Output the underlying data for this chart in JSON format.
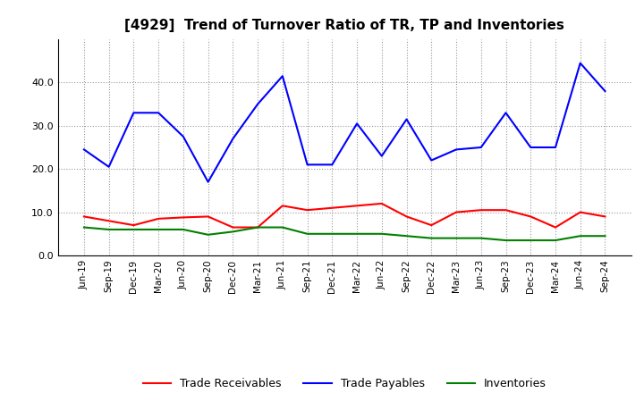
{
  "title": "[4929]  Trend of Turnover Ratio of TR, TP and Inventories",
  "x_labels": [
    "Jun-19",
    "Sep-19",
    "Dec-19",
    "Mar-20",
    "Jun-20",
    "Sep-20",
    "Dec-20",
    "Mar-21",
    "Jun-21",
    "Sep-21",
    "Dec-21",
    "Mar-22",
    "Jun-22",
    "Sep-22",
    "Dec-22",
    "Mar-23",
    "Jun-23",
    "Sep-23",
    "Dec-23",
    "Mar-24",
    "Jun-24",
    "Sep-24"
  ],
  "trade_receivables": [
    9.0,
    8.0,
    7.0,
    8.5,
    8.8,
    9.0,
    6.5,
    6.5,
    11.5,
    10.5,
    11.0,
    11.5,
    12.0,
    9.0,
    7.0,
    10.0,
    10.5,
    10.5,
    9.0,
    6.5,
    10.0,
    9.0
  ],
  "trade_payables": [
    24.5,
    20.5,
    33.0,
    33.0,
    27.5,
    17.0,
    27.0,
    35.0,
    41.5,
    21.0,
    21.0,
    30.5,
    23.0,
    31.5,
    22.0,
    24.5,
    25.0,
    33.0,
    25.0,
    25.0,
    44.5,
    38.0
  ],
  "inventories": [
    6.5,
    6.0,
    6.0,
    6.0,
    6.0,
    4.8,
    5.5,
    6.5,
    6.5,
    5.0,
    5.0,
    5.0,
    5.0,
    4.5,
    4.0,
    4.0,
    4.0,
    3.5,
    3.5,
    3.5,
    4.5,
    4.5
  ],
  "tr_color": "#ff0000",
  "tp_color": "#0000ff",
  "inv_color": "#008000",
  "ylim": [
    0,
    50
  ],
  "yticks": [
    0.0,
    10.0,
    20.0,
    30.0,
    40.0
  ],
  "background_color": "#ffffff",
  "plot_bg_color": "#ffffff",
  "grid_color": "#999999",
  "legend_labels": [
    "Trade Receivables",
    "Trade Payables",
    "Inventories"
  ]
}
